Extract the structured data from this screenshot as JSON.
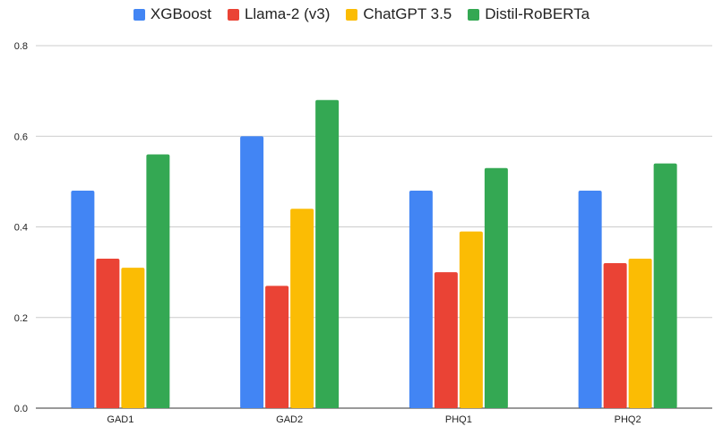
{
  "chart_data": {
    "type": "bar",
    "categories": [
      "GAD1",
      "GAD2",
      "PHQ1",
      "PHQ2"
    ],
    "series": [
      {
        "name": "XGBoost",
        "color": "#4285F4",
        "values": [
          0.48,
          0.6,
          0.48,
          0.48
        ]
      },
      {
        "name": "Llama-2 (v3)",
        "color": "#EA4335",
        "values": [
          0.33,
          0.27,
          0.3,
          0.32
        ]
      },
      {
        "name": "ChatGPT 3.5",
        "color": "#FBBC04",
        "values": [
          0.31,
          0.44,
          0.39,
          0.33
        ]
      },
      {
        "name": "Distil-RoBERTa",
        "color": "#34A853",
        "values": [
          0.56,
          0.68,
          0.53,
          0.54
        ]
      }
    ],
    "yticks": [
      "0.0",
      "0.2",
      "0.4",
      "0.6",
      "0.8"
    ],
    "ylim": [
      0,
      0.8
    ],
    "grid": true,
    "legend_position": "top",
    "title": "",
    "xlabel": "",
    "ylabel": ""
  }
}
